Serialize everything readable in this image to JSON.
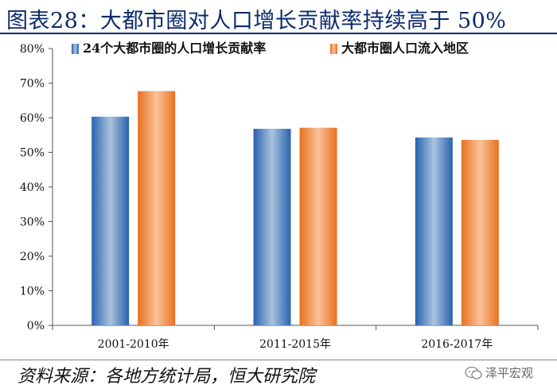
{
  "header": {
    "title": "图表28：大都市圈对人口增长贡献率持续高于 50%"
  },
  "footer": {
    "source": "资料来源：各地方统计局，恒大研究院",
    "watermark": "泽平宏观"
  },
  "colors": {
    "blue": "#3a77c2",
    "orange": "#ee7a2a",
    "title": "#0d2b6b"
  },
  "chart_data": {
    "type": "bar",
    "categories": [
      "2001-2010年",
      "2011-2015年",
      "2016-2017年"
    ],
    "series": [
      {
        "name": "24个大都市圈的人口增长贡献率",
        "values": [
          60.3,
          56.8,
          54.3
        ]
      },
      {
        "name": "大都市圈人口流入地区",
        "values": [
          67.7,
          57.1,
          53.6
        ]
      }
    ],
    "y_ticks": [
      "0%",
      "10%",
      "20%",
      "30%",
      "40%",
      "50%",
      "60%",
      "70%",
      "80%"
    ],
    "ylim": [
      0,
      80
    ],
    "ylabel_unit": "%",
    "legend_position": "top",
    "grid": false
  }
}
